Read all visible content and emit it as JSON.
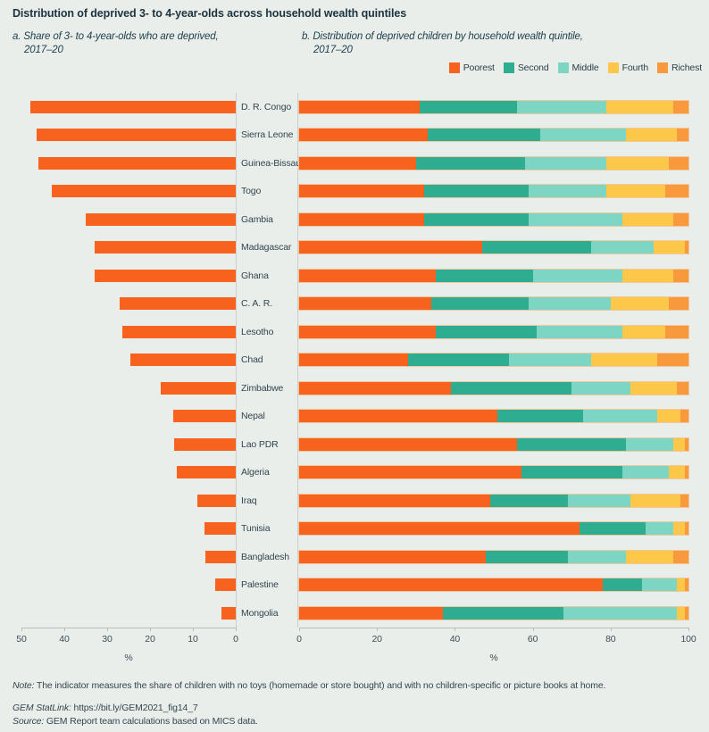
{
  "title": "Distribution of deprived 3- to 4-year-olds across household wealth quintiles",
  "panels": {
    "a": {
      "line1": "a. Share of 3- to 4-year-olds who are deprived,",
      "line2": "2017–20"
    },
    "b": {
      "line1": "b. Distribution of deprived children by household wealth quintile,",
      "line2": "2017–20"
    }
  },
  "legend": [
    {
      "label": "Poorest",
      "color": "#f8621f"
    },
    {
      "label": "Second",
      "color": "#2ead90"
    },
    {
      "label": "Middle",
      "color": "#7dd5c4"
    },
    {
      "label": "Fourth",
      "color": "#fdc74a"
    },
    {
      "label": "Richest",
      "color": "#f8993d"
    }
  ],
  "colors": {
    "background": "#e9eeeb",
    "bar_poorest": "#f8621f",
    "axis_line": "#b4bfbd",
    "gutter_line": "#c9d1cf",
    "title_text": "#1d333d",
    "label_text": "#33454e"
  },
  "countries": [
    "D. R. Congo",
    "Sierra Leone",
    "Guinea-Bissau",
    "Togo",
    "Gambia",
    "Madagascar",
    "Ghana",
    "C. A. R.",
    "Lesotho",
    "Chad",
    "Zimbabwe",
    "Nepal",
    "Lao PDR",
    "Algeria",
    "Iraq",
    "Tunisia",
    "Bangladesh",
    "Palestine",
    "Mongolia"
  ],
  "chart_data": [
    {
      "type": "bar",
      "title": "a. Share of 3- to 4-year-olds who are deprived, 2017–20",
      "orientation": "horizontal",
      "axis_reversed": true,
      "xlim": [
        50,
        0
      ],
      "ticks": [
        50,
        40,
        30,
        20,
        10,
        0
      ],
      "xlabel": "%",
      "grid": false,
      "categories": [
        "D. R. Congo",
        "Sierra Leone",
        "Guinea-Bissau",
        "Togo",
        "Gambia",
        "Madagascar",
        "Ghana",
        "C. A. R.",
        "Lesotho",
        "Chad",
        "Zimbabwe",
        "Nepal",
        "Lao PDR",
        "Algeria",
        "Iraq",
        "Tunisia",
        "Bangladesh",
        "Palestine",
        "Mongolia"
      ],
      "values": [
        48,
        46.5,
        46,
        43,
        35,
        33,
        33,
        27,
        26.5,
        24.5,
        17.5,
        14.5,
        14.4,
        13.8,
        9,
        7.2,
        7,
        4.8,
        3.4
      ]
    },
    {
      "type": "bar",
      "subtype": "stacked",
      "title": "b. Distribution of deprived children by household wealth quintile, 2017–20",
      "orientation": "horizontal",
      "xlim": [
        0,
        100
      ],
      "ticks": [
        0,
        20,
        40,
        60,
        80,
        100
      ],
      "xlabel": "%",
      "grid": false,
      "legend_position": "top-right",
      "categories": [
        "D. R. Congo",
        "Sierra Leone",
        "Guinea-Bissau",
        "Togo",
        "Gambia",
        "Madagascar",
        "Ghana",
        "C. A. R.",
        "Lesotho",
        "Chad",
        "Zimbabwe",
        "Nepal",
        "Lao PDR",
        "Algeria",
        "Iraq",
        "Tunisia",
        "Bangladesh",
        "Palestine",
        "Mongolia"
      ],
      "series": [
        {
          "name": "Poorest",
          "values": [
            31,
            33,
            30,
            32,
            32,
            47,
            35,
            34,
            35,
            28,
            39,
            51,
            56,
            57,
            49,
            72,
            48,
            78,
            37
          ]
        },
        {
          "name": "Second",
          "values": [
            25,
            29,
            28,
            27,
            27,
            28,
            25,
            25,
            26,
            26,
            31,
            22,
            28,
            26,
            20,
            17,
            21,
            10,
            31
          ]
        },
        {
          "name": "Middle",
          "values": [
            23,
            22,
            21,
            20,
            24,
            16,
            23,
            21,
            22,
            21,
            15,
            19,
            12,
            12,
            16,
            7,
            15,
            9,
            29
          ]
        },
        {
          "name": "Fourth",
          "values": [
            17,
            13,
            16,
            15,
            13,
            8,
            13,
            15,
            11,
            17,
            12,
            6,
            3,
            4,
            13,
            3,
            12,
            2,
            2
          ]
        },
        {
          "name": "Richest",
          "values": [
            4,
            3,
            5,
            6,
            4,
            1,
            4,
            5,
            6,
            8,
            3,
            2,
            1,
            1,
            2,
            1,
            4,
            1,
            1
          ]
        }
      ]
    }
  ],
  "axes": {
    "left": {
      "ticks": [
        "50",
        "40",
        "30",
        "20",
        "10",
        "0"
      ],
      "unit": "%"
    },
    "right": {
      "ticks": [
        "0",
        "20",
        "40",
        "60",
        "80",
        "100"
      ],
      "unit": "%"
    }
  },
  "footer": {
    "note_prefix": "Note:",
    "note_text": " The indicator measures the share of children with no toys (homemade or store bought) and with no children-specific or picture books at home.",
    "statlink_prefix": "GEM StatLink:",
    "statlink_text": " https://bit.ly/GEM2021_fig14_7",
    "source_prefix": "Source:",
    "source_text": " GEM Report team calculations based on MICS data."
  }
}
